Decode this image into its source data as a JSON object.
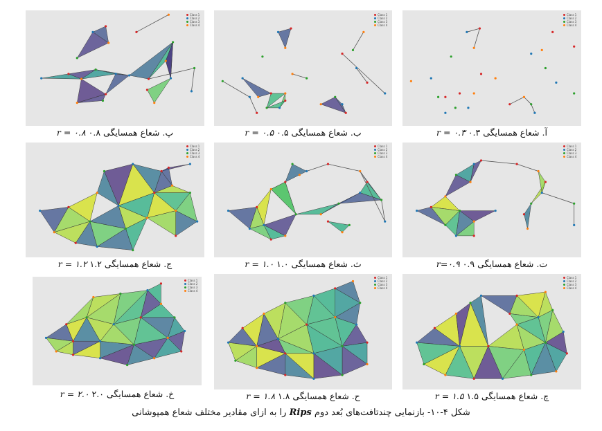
{
  "legend": {
    "class1": "Class 1",
    "class2": "Class 2",
    "class3": "Class 3",
    "class4": "Class 4"
  },
  "colors": {
    "class1": "#d62728",
    "class2": "#1f77b4",
    "class3": "#2ca02c",
    "class4": "#ff7f0e",
    "plot_bg": "#e6e6e6",
    "edge": "#555555"
  },
  "panels": [
    {
      "id": "p1",
      "caption": "پ. شعاع همسایگی ۰.۸",
      "r": "r = ۰.۸"
    },
    {
      "id": "p2",
      "caption": "ب. شعاع همسایگی ۰.۵",
      "r": "r = ۰.۵"
    },
    {
      "id": "p3",
      "caption": "آ. شعاع همسایگی ۰.۳",
      "r": "r = ۰.۳"
    },
    {
      "id": "p4",
      "caption": "ج. شعاع همسایگی ۱.۲",
      "r": "r = ۱.۲"
    },
    {
      "id": "p5",
      "caption": "ث. شعاع همسایگی ۱.۰",
      "r": "r = ۱.۰"
    },
    {
      "id": "p6",
      "caption": "ت. شعاع همسایگی ۰.۹",
      "r": "r=۰.۹"
    },
    {
      "id": "p7",
      "caption": "خ. شعاع همسایگی ۲.۰",
      "r": "r = ۲.۰"
    },
    {
      "id": "p8",
      "caption": "ح. شعاع همسایگی ۱.۸",
      "r": "r = ۱.۸"
    },
    {
      "id": "p9",
      "caption": "چ. شعاع همسایگی ۱.۵",
      "r": "r = ۱.۵"
    }
  ],
  "figure_caption": {
    "prefix": "شکل ۴-۱۰- بازنمایی چندتافت‌های بُعد دوم",
    "term": "Rips",
    "suffix": "را به ازای مقادیر مختلف شعاع همپوشانی"
  }
}
